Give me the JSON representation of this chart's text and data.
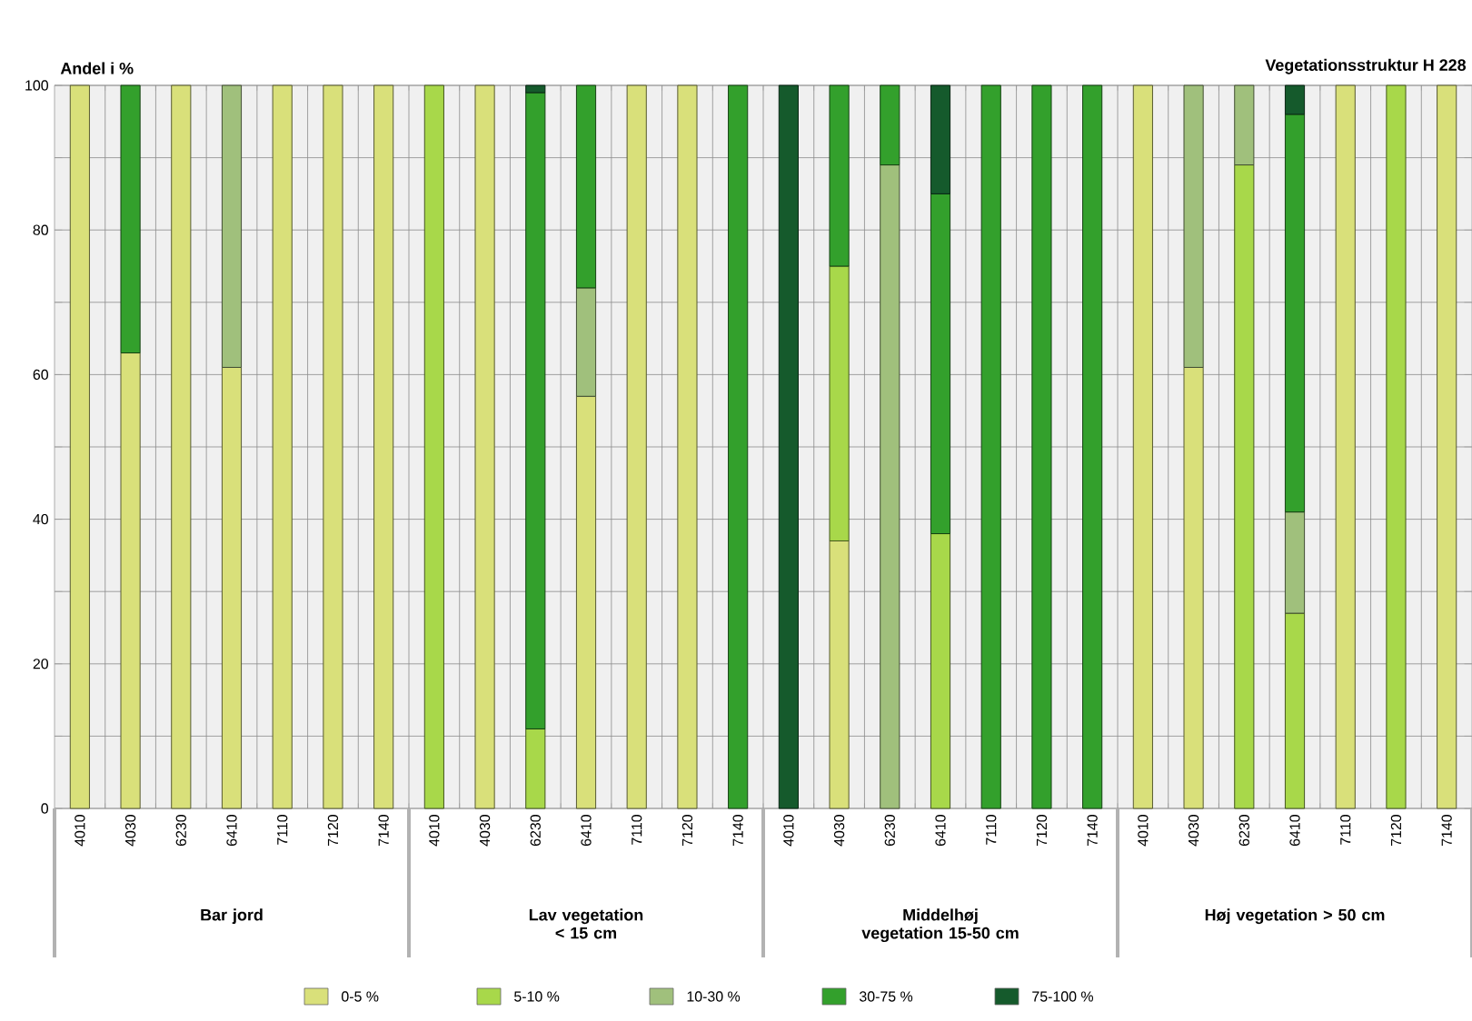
{
  "chart_data": {
    "type": "bar",
    "stacked": true,
    "title": "Vegetationsstruktur H 228",
    "ylabel": "Andel i %",
    "categories": [
      "4010",
      "4030",
      "6230",
      "6410",
      "7110",
      "7120",
      "7140",
      "4010",
      "4030",
      "6230",
      "6410",
      "7110",
      "7120",
      "7140",
      "4010",
      "4030",
      "6230",
      "6410",
      "7110",
      "7120",
      "7140",
      "4010",
      "4030",
      "6230",
      "6410",
      "7110",
      "7120",
      "7140"
    ],
    "series": [
      {
        "name": "0-5 %",
        "color": "#d9e07a",
        "values": [
          100,
          63,
          100,
          61,
          100,
          100,
          100,
          null,
          100,
          null,
          57,
          100,
          100,
          null,
          null,
          37,
          null,
          null,
          null,
          null,
          null,
          100,
          61,
          null,
          null,
          100,
          null,
          100
        ]
      },
      {
        "name": "5-10 %",
        "color": "#a8d84a",
        "values": [
          null,
          null,
          null,
          null,
          null,
          null,
          null,
          100,
          null,
          11,
          null,
          null,
          null,
          null,
          null,
          38,
          null,
          38,
          null,
          null,
          null,
          null,
          null,
          89,
          27,
          null,
          100,
          null
        ]
      },
      {
        "name": "10-30 %",
        "color": "#a0c07c",
        "values": [
          null,
          null,
          null,
          39,
          null,
          null,
          null,
          null,
          null,
          null,
          15,
          null,
          null,
          null,
          null,
          null,
          89,
          null,
          null,
          null,
          null,
          null,
          39,
          11,
          14,
          null,
          null,
          null
        ]
      },
      {
        "name": "30-75 %",
        "color": "#33a02c",
        "values": [
          null,
          37,
          null,
          null,
          null,
          null,
          null,
          null,
          null,
          88,
          28,
          null,
          null,
          100,
          null,
          25,
          11,
          47,
          100,
          100,
          100,
          null,
          null,
          null,
          55,
          null,
          null,
          null
        ]
      },
      {
        "name": "75-100 %",
        "color": "#155a2c",
        "values": [
          null,
          null,
          null,
          null,
          null,
          null,
          null,
          null,
          null,
          1,
          null,
          null,
          null,
          null,
          100,
          null,
          null,
          15,
          null,
          null,
          null,
          null,
          null,
          null,
          4,
          null,
          null,
          null
        ]
      }
    ],
    "annotations": [
      "Bar jord",
      "Lav vegetation < 15 cm",
      "Middelhøj vegetation 15-50 cm",
      "Høj vegetation > 50 cm"
    ],
    "ylim": [
      0,
      100
    ],
    "yticks": [
      0,
      {
        "value": 10,
        "label": null
      },
      20,
      {
        "value": 30,
        "label": null
      },
      40,
      {
        "value": 50,
        "label": null
      },
      60,
      {
        "value": 70,
        "label": null
      },
      80,
      {
        "value": 90,
        "label": null
      },
      100
    ],
    "grid": true,
    "legend": "bottom"
  }
}
